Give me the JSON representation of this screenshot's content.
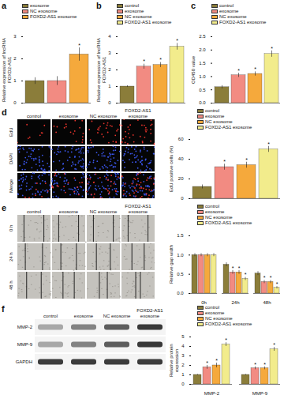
{
  "chart_data": [
    {
      "panel": "a",
      "type": "bar",
      "y_label": "Relative expression of lncRNA FOXD2-AS1",
      "categories": [
        "exosome",
        "NC exosome",
        "FOXD2-AS1 exosome"
      ],
      "values": [
        1.0,
        1.0,
        2.2
      ],
      "errors": [
        0.15,
        0.2,
        0.3
      ],
      "significance": [
        null,
        null,
        "*"
      ],
      "colors": [
        "#8b7d3a",
        "#f28b82",
        "#f5a93c"
      ],
      "ylim": [
        0,
        3
      ],
      "yticks": [
        0,
        1,
        2,
        3
      ],
      "legend": "top-left",
      "tick_labels": "y"
    },
    {
      "panel": "b",
      "type": "bar",
      "y_label": "Relative expression of lncRNA FOXD2-AS1",
      "categories": [
        "control",
        "exosome",
        "NC exosome",
        "FOXD2-AS1 exosome"
      ],
      "values": [
        1.0,
        2.2,
        2.3,
        3.4
      ],
      "errors": [
        0.05,
        0.15,
        0.15,
        0.2
      ],
      "significance": [
        null,
        "*",
        "*",
        "*"
      ],
      "colors": [
        "#8b7d3a",
        "#f28b82",
        "#f5a93c",
        "#f2ec8c"
      ],
      "ylim": [
        0,
        4
      ],
      "yticks": [
        0,
        1,
        2,
        3,
        4
      ],
      "legend": "top-left",
      "tick_labels": "y"
    },
    {
      "panel": "c",
      "type": "bar",
      "y_label": "OD450 value",
      "categories": [
        "control",
        "exosome",
        "NC exosome",
        "FOXD2-AS1 exosome"
      ],
      "values": [
        0.6,
        1.05,
        1.1,
        1.85
      ],
      "errors": [
        0.06,
        0.08,
        0.08,
        0.12
      ],
      "significance": [
        null,
        "*",
        "*",
        "*"
      ],
      "colors": [
        "#8b7d3a",
        "#f28b82",
        "#f5a93c",
        "#f2ec8c"
      ],
      "ylim": [
        0,
        2.5
      ],
      "yticks": [
        {
          "value": 0,
          "label": "0.0"
        },
        0.5,
        {
          "value": 1,
          "label": "1.0"
        },
        1.5,
        {
          "value": 2,
          "label": "2.0"
        },
        2.5
      ],
      "legend": "top-left",
      "tick_labels": "y"
    },
    {
      "panel": "d",
      "type": "bar",
      "y_label": "EdU positive cells (%)",
      "images": {
        "columns": [
          "control",
          "exosome",
          "NC exosome",
          "FOXD2-AS1 exosome"
        ],
        "rows": [
          "EdU",
          "DAPI",
          "Merge"
        ]
      },
      "categories": [
        "control",
        "exosome",
        "NC exosome",
        "FOXD2-AS1 exosome"
      ],
      "values": [
        12,
        32,
        34,
        50
      ],
      "errors": [
        2,
        3,
        3,
        3
      ],
      "significance": [
        null,
        "*",
        "*",
        "*"
      ],
      "colors": [
        "#8b7d3a",
        "#f28b82",
        "#f5a93c",
        "#f2ec8c"
      ],
      "ylim": [
        0,
        60
      ],
      "yticks": [
        0,
        20,
        40,
        60
      ],
      "legend": "top-left",
      "tick_labels": "y"
    },
    {
      "panel": "e",
      "type": "bar",
      "y_label": "Relative gap width",
      "images": {
        "columns": [
          "control",
          "exosome",
          "NC exosome",
          "FOXD2-AS1 exosome"
        ],
        "rows": [
          "0 h",
          "24 h",
          "48 h"
        ]
      },
      "categories": [
        "0h",
        "24h",
        "48h"
      ],
      "series": [
        {
          "name": "control",
          "color": "#8b7d3a",
          "values": [
            1.0,
            0.75,
            0.52
          ],
          "errors": [
            0.04,
            0.05,
            0.05
          ],
          "significance": [
            null,
            null,
            null
          ]
        },
        {
          "name": "exosome",
          "color": "#f28b82",
          "values": [
            1.0,
            0.55,
            0.3
          ],
          "errors": [
            0.04,
            0.05,
            0.04
          ],
          "significance": [
            null,
            "*",
            "*"
          ]
        },
        {
          "name": "NC exosome",
          "color": "#f5a93c",
          "values": [
            1.0,
            0.55,
            0.3
          ],
          "errors": [
            0.04,
            0.05,
            0.04
          ],
          "significance": [
            null,
            "*",
            "*"
          ]
        },
        {
          "name": "FOXD2-AS1 exosome",
          "color": "#f2ec8c",
          "values": [
            1.0,
            0.38,
            0.15
          ],
          "errors": [
            0.04,
            0.04,
            0.03
          ],
          "significance": [
            null,
            "*",
            "*"
          ]
        }
      ],
      "ylim": [
        0,
        1.5
      ],
      "yticks": [
        {
          "value": 0,
          "label": "0.0"
        },
        0.5,
        {
          "value": 1,
          "label": "1.0"
        },
        1.5
      ],
      "legend": "top-right"
    },
    {
      "panel": "f",
      "type": "bar",
      "y_label": "Relative protein expression",
      "blot": {
        "columns": [
          "control",
          "exosome",
          "NC exosome",
          "FOXD2-AS1 exosome"
        ],
        "rows": [
          "MMP-2",
          "MMP-9",
          "GAPDH"
        ]
      },
      "categories": [
        "MMP-2",
        "MMP-9"
      ],
      "series": [
        {
          "name": "control",
          "color": "#8b7d3a",
          "values": [
            1.0,
            1.0
          ],
          "errors": [
            0.05,
            0.05
          ],
          "significance": [
            null,
            null
          ]
        },
        {
          "name": "exosome",
          "color": "#f28b82",
          "values": [
            1.8,
            1.7
          ],
          "errors": [
            0.2,
            0.15
          ],
          "significance": [
            "*",
            "*"
          ]
        },
        {
          "name": "NC exosome",
          "color": "#f5a93c",
          "values": [
            2.0,
            1.7
          ],
          "errors": [
            0.25,
            0.15
          ],
          "significance": [
            "*",
            "*"
          ]
        },
        {
          "name": "FOXD2-AS1 exosome",
          "color": "#f2ec8c",
          "values": [
            4.2,
            3.7
          ],
          "errors": [
            0.2,
            0.2
          ],
          "significance": [
            "*",
            "*"
          ]
        }
      ],
      "ylim": [
        0,
        5
      ],
      "yticks": [
        0,
        1,
        2,
        3,
        4,
        5
      ],
      "legend": "top-right"
    }
  ]
}
